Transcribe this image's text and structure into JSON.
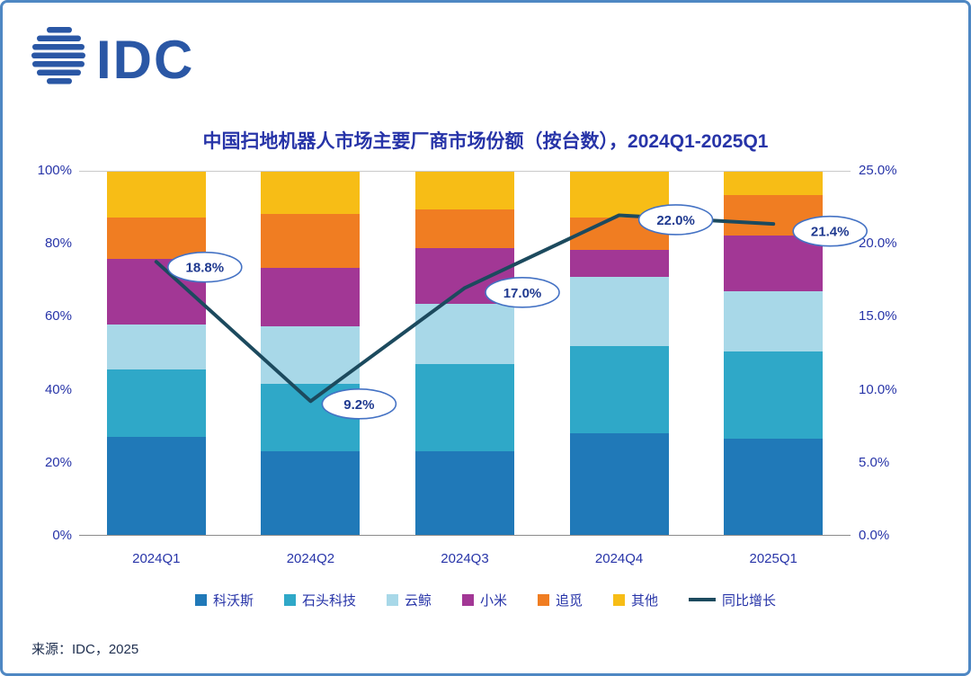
{
  "logo": {
    "text": "IDC"
  },
  "source": "来源：IDC，2025",
  "colors": {
    "frame": "#4E87C3",
    "title_text": "#2734A8",
    "axis_text": "#2734A8",
    "source_text": "#203050",
    "bubble_stroke": "#4472C4",
    "bubble_text": "#203A90",
    "plot_top": "#C9C9C9",
    "plot_bottom": "#8C8C8C"
  },
  "chart_data": {
    "type": "bar",
    "subtype": "stacked-100-bar-with-line",
    "title": "中国扫地机器人市场主要厂商市场份额（按台数），2024Q1-2025Q1",
    "categories": [
      "2024Q1",
      "2024Q2",
      "2024Q3",
      "2024Q4",
      "2025Q1"
    ],
    "bar_series": [
      {
        "name": "科沃斯",
        "color": "#2079B8",
        "values": [
          27,
          23,
          23,
          28,
          26.5
        ]
      },
      {
        "name": "石头科技",
        "color": "#2FA8C8",
        "values": [
          18.5,
          18.5,
          24,
          24,
          24
        ]
      },
      {
        "name": "云鲸",
        "color": "#A8D8E8",
        "values": [
          12.5,
          16,
          16.5,
          19,
          16.5
        ]
      },
      {
        "name": "小米",
        "color": "#A23795",
        "values": [
          18,
          16,
          15.5,
          7.5,
          15.5
        ]
      },
      {
        "name": "追觅",
        "color": "#F07D22",
        "values": [
          11.5,
          15,
          10.5,
          9,
          11
        ]
      },
      {
        "name": "其他",
        "color": "#F7BD16",
        "values": [
          12.5,
          11.5,
          10.5,
          12.5,
          6.5
        ]
      }
    ],
    "line_series": {
      "name": "同比增长",
      "color": "#1C4A5E",
      "values": [
        18.8,
        9.2,
        17.0,
        22.0,
        21.4
      ],
      "labels": [
        "18.8%",
        "9.2%",
        "17.0%",
        "22.0%",
        "21.4%"
      ]
    },
    "left_axis": {
      "min": 0,
      "max": 100,
      "ticks": [
        "100%",
        "80%",
        "60%",
        "40%",
        "20%",
        "0%"
      ]
    },
    "right_axis": {
      "min": 0,
      "max": 25,
      "ticks": [
        "25.0%",
        "20.0%",
        "15.0%",
        "10.0%",
        "5.0%",
        "0.0%"
      ]
    },
    "legend_position": "bottom",
    "grid": false
  }
}
